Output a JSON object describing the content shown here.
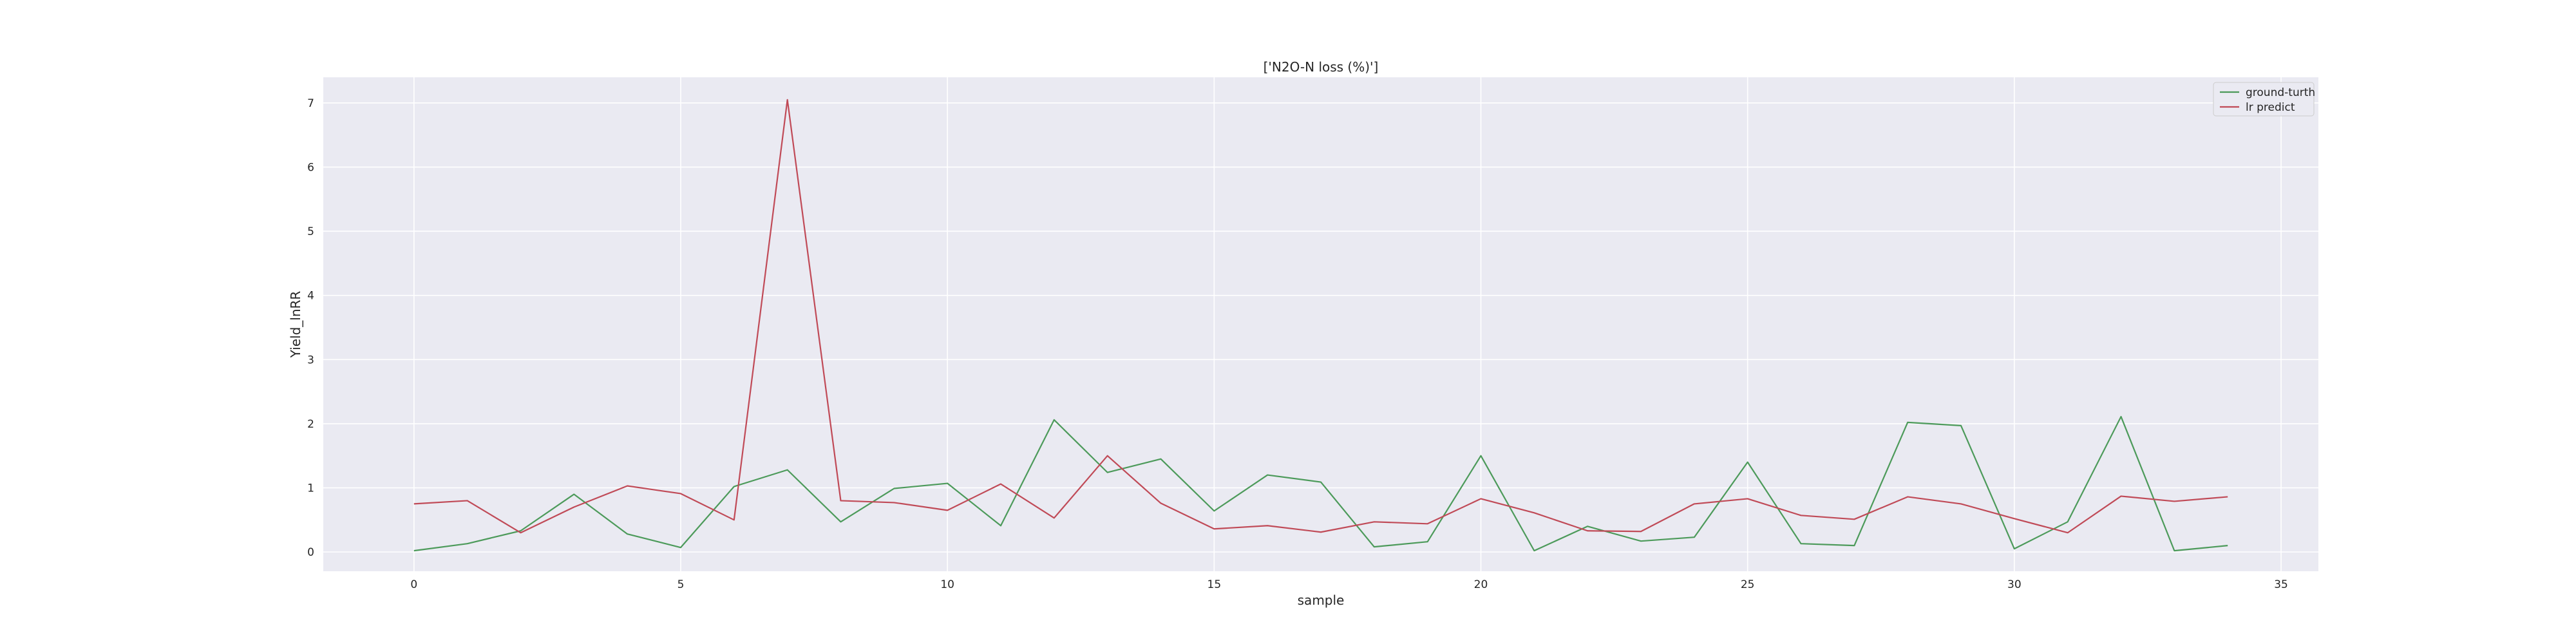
{
  "chart_data": {
    "type": "line",
    "title": "['N2O-N loss (%)']",
    "xlabel": "sample",
    "ylabel": "Yield_lnRR",
    "xlim": [
      -1.7,
      35.7
    ],
    "ylim": [
      -0.3,
      7.4
    ],
    "xticks": [
      0,
      5,
      10,
      15,
      20,
      25,
      30,
      35
    ],
    "yticks": [
      0,
      1,
      2,
      3,
      4,
      5,
      6,
      7
    ],
    "grid": true,
    "legend_position": "top-right",
    "x": [
      0,
      1,
      2,
      3,
      4,
      5,
      6,
      7,
      8,
      9,
      10,
      11,
      12,
      13,
      14,
      15,
      16,
      17,
      18,
      19,
      20,
      21,
      22,
      23,
      24,
      25,
      26,
      27,
      28,
      29,
      30,
      31,
      32,
      33,
      34
    ],
    "series": [
      {
        "name": "ground-turth",
        "color": "#4c9a5a",
        "values": [
          0.02,
          0.13,
          0.33,
          0.9,
          0.28,
          0.07,
          1.02,
          1.28,
          0.47,
          0.99,
          1.07,
          0.41,
          2.06,
          1.24,
          1.45,
          0.64,
          1.2,
          1.09,
          0.08,
          0.16,
          1.5,
          0.02,
          0.4,
          0.17,
          0.23,
          1.4,
          0.13,
          0.1,
          2.02,
          1.97,
          0.05,
          0.47,
          2.11,
          0.02,
          0.1
        ]
      },
      {
        "name": "lr predict",
        "color": "#c04a57",
        "values": [
          0.75,
          0.8,
          0.3,
          0.7,
          1.03,
          0.91,
          0.5,
          7.05,
          0.8,
          0.77,
          0.65,
          1.06,
          0.53,
          1.5,
          0.76,
          0.36,
          0.41,
          0.31,
          0.47,
          0.44,
          0.83,
          0.61,
          0.33,
          0.32,
          0.75,
          0.83,
          0.57,
          0.51,
          0.86,
          0.75,
          0.52,
          0.3,
          0.87,
          0.79,
          0.86
        ]
      }
    ]
  }
}
